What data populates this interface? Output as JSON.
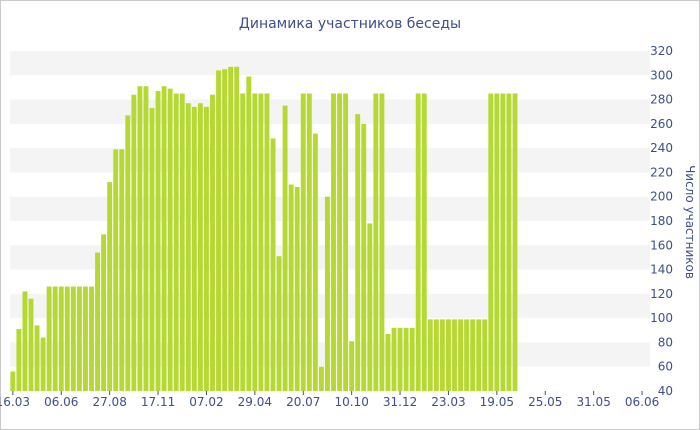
{
  "chart_data": {
    "type": "bar",
    "title": "Динамика участников беседы",
    "ylabel": "Число участников",
    "ylim": [
      40,
      320
    ],
    "yticks": [
      40,
      60,
      80,
      100,
      120,
      140,
      160,
      180,
      200,
      220,
      240,
      260,
      280,
      300,
      320
    ],
    "y_axis_position": "right",
    "grid": "horizontal bands",
    "xtick_labels": [
      {
        "index": 0,
        "label": "16.03"
      },
      {
        "index": 8,
        "label": "06.06"
      },
      {
        "index": 16,
        "label": "27.08"
      },
      {
        "index": 24,
        "label": "17.11"
      },
      {
        "index": 32,
        "label": "07.02"
      },
      {
        "index": 40,
        "label": "29.04"
      },
      {
        "index": 48,
        "label": "20.07"
      },
      {
        "index": 56,
        "label": "10.10"
      },
      {
        "index": 64,
        "label": "31.12"
      },
      {
        "index": 72,
        "label": "23.03"
      },
      {
        "index": 80,
        "label": "19.05"
      },
      {
        "index": 88,
        "label": "25.05"
      },
      {
        "index": 96,
        "label": "31.05"
      },
      {
        "index": 104,
        "label": "06.06"
      }
    ],
    "values": [
      56,
      91,
      122,
      116,
      94,
      84,
      126,
      126,
      126,
      126,
      126,
      126,
      126,
      126,
      154,
      169,
      212,
      239,
      239,
      267,
      284,
      291,
      291,
      273,
      287,
      291,
      289,
      285,
      285,
      277,
      274,
      277,
      274,
      284,
      304,
      305,
      307,
      307,
      285,
      299,
      285,
      285,
      285,
      248,
      151,
      275,
      210,
      208,
      285,
      285,
      252,
      60,
      200,
      285,
      285,
      285,
      81,
      268,
      260,
      178,
      285,
      285,
      87,
      92,
      92,
      92,
      92,
      285,
      285,
      99,
      99,
      99,
      99,
      99,
      99,
      99,
      99,
      99,
      99,
      285,
      285,
      285,
      285,
      285
    ],
    "bar_color": "#b5d932"
  }
}
